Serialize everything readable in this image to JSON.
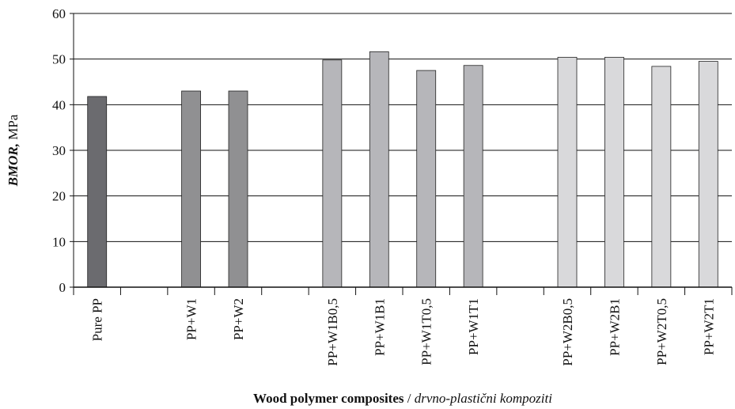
{
  "chart_data": {
    "type": "bar",
    "categories": [
      "Pure PP",
      null,
      "PP+W1",
      "PP+W2",
      null,
      "PP+W1B0,5",
      "PP+W1B1",
      "PP+W1T0,5",
      "PP+W1T1",
      null,
      "PP+W2B0,5",
      "PP+W2B1",
      "PP+W2T0,5",
      "PP+W2T1"
    ],
    "values": [
      41.8,
      null,
      43,
      43,
      null,
      49.8,
      51.6,
      47.5,
      48.6,
      null,
      50.4,
      50.4,
      48.4,
      49.5
    ],
    "colors": [
      "#6b6b6f",
      null,
      "#909092",
      "#909092",
      null,
      "#b6b6ba",
      "#b6b6ba",
      "#b6b6ba",
      "#b6b6ba",
      null,
      "#d9d9db",
      "#d9d9db",
      "#d9d9db",
      "#d9d9db"
    ],
    "ylabel": [
      "BMOR,",
      "MPa"
    ],
    "xlabel": [
      "Wood polymer composites",
      "/",
      "drvno-plastični kompoziti"
    ],
    "ylim": [
      0,
      60
    ],
    "yticks": [
      0,
      10,
      20,
      30,
      40,
      50,
      60
    ],
    "grid": true
  }
}
